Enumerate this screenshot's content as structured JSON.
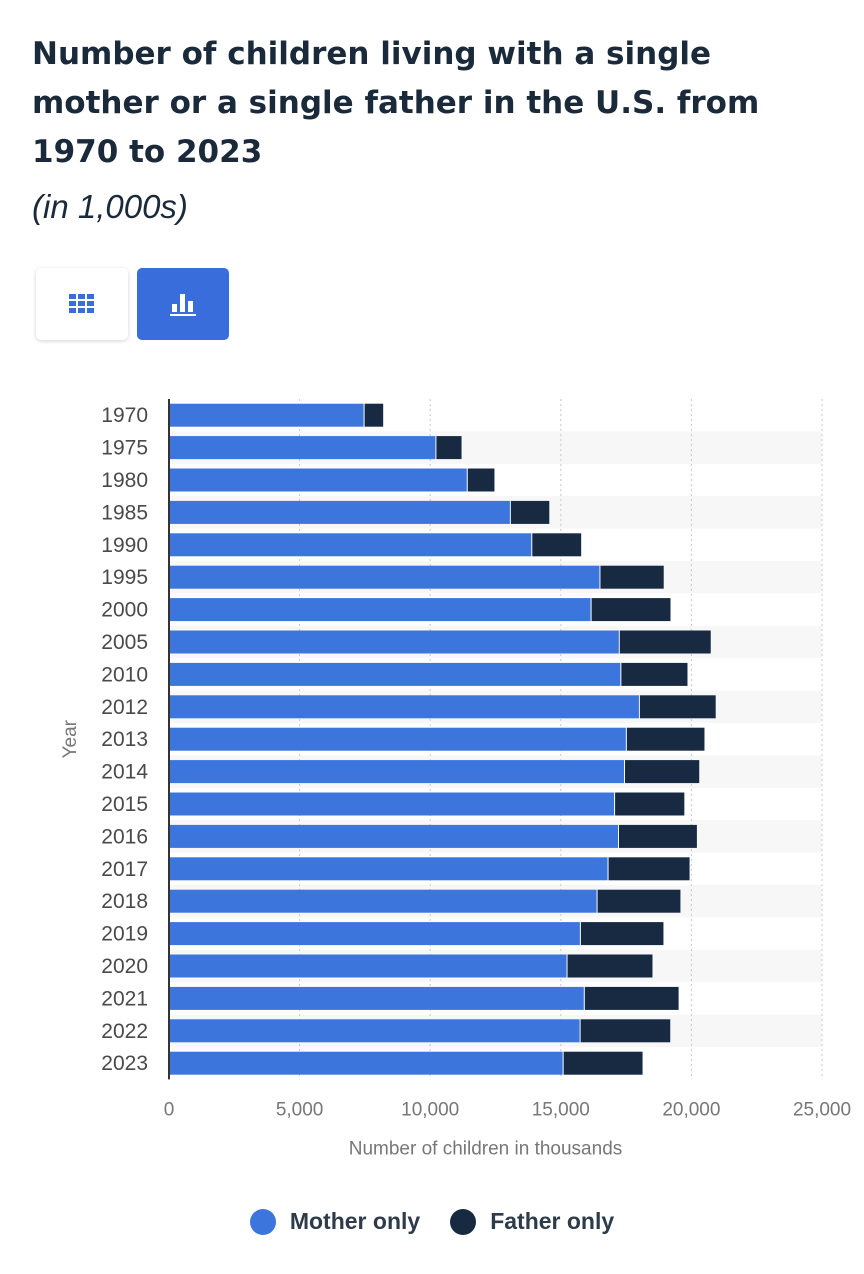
{
  "header": {
    "title": "Number of children living with a single mother or a single father in the U.S. from 1970 to 2023",
    "subtitle": "(in 1,000s)"
  },
  "view_toggle": {
    "table_icon": "table-grid-icon",
    "chart_icon": "bar-chart-icon",
    "active": "chart"
  },
  "colors": {
    "mother": "#3c76dd",
    "father": "#172a42",
    "accent": "#3a6ddc"
  },
  "chart_data": {
    "type": "bar",
    "orientation": "horizontal",
    "stacked": true,
    "xlabel": "Number of children in thousands",
    "ylabel": "Year",
    "xlim": [
      0,
      25000
    ],
    "x_ticks": [
      "0",
      "5,000",
      "10,000",
      "15,000",
      "20,000",
      "25,000"
    ],
    "x_tick_values": [
      0,
      5000,
      10000,
      15000,
      20000,
      25000
    ],
    "grid": true,
    "legend_position": "bottom",
    "categories": [
      "1970",
      "1975",
      "1980",
      "1985",
      "1990",
      "1995",
      "2000",
      "2005",
      "2010",
      "2012",
      "2013",
      "2014",
      "2015",
      "2016",
      "2017",
      "2018",
      "2019",
      "2020",
      "2021",
      "2022",
      "2023"
    ],
    "series": [
      {
        "name": "Mother only",
        "values": [
          7450,
          10200,
          11400,
          13050,
          13870,
          16480,
          16140,
          17220,
          17280,
          17990,
          17490,
          17420,
          17040,
          17190,
          16790,
          16370,
          15730,
          15220,
          15880,
          15720,
          15070
        ]
      },
      {
        "name": "Father only",
        "values": [
          750,
          1000,
          1060,
          1510,
          1910,
          2460,
          3060,
          3520,
          2570,
          2940,
          3010,
          2880,
          2690,
          3020,
          3140,
          3210,
          3200,
          3290,
          3630,
          3470,
          3060
        ]
      }
    ]
  }
}
